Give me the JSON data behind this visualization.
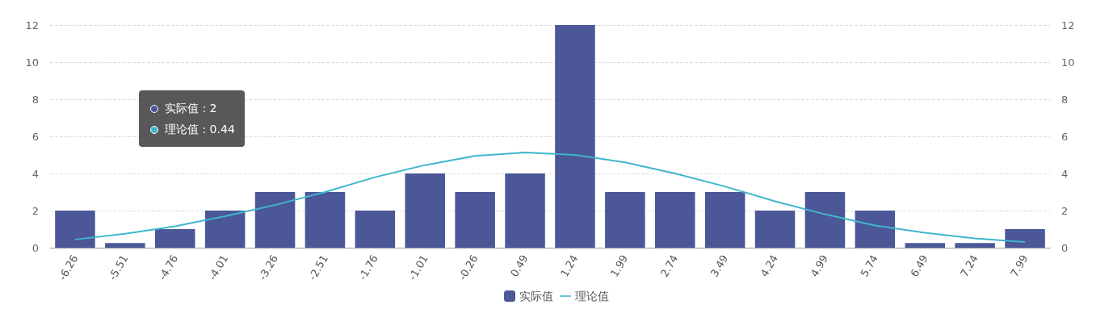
{
  "chart_data": {
    "type": "bar",
    "categories": [
      "-6.26",
      "-5.51",
      "-4.76",
      "-4.01",
      "-3.26",
      "-2.51",
      "-1.76",
      "-1.01",
      "-0.26",
      "0.49",
      "1.24",
      "1.99",
      "2.74",
      "3.49",
      "4.24",
      "4.99",
      "5.74",
      "6.49",
      "7.24",
      "7.99"
    ],
    "series": [
      {
        "name": "实际值",
        "color": "#4b5797",
        "values": [
          2,
          0.25,
          1,
          2,
          3,
          3,
          2,
          4,
          3,
          4,
          12,
          3,
          3,
          3,
          2,
          3,
          2,
          0.25,
          0.25,
          1
        ]
      },
      {
        "name": "理论值",
        "type": "line",
        "color": "#3fb6cc",
        "marker": "none",
        "values": [
          0.44,
          0.75,
          1.15,
          1.7,
          2.3,
          3.0,
          3.8,
          4.45,
          4.95,
          5.13,
          5.0,
          4.6,
          4.0,
          3.3,
          2.5,
          1.8,
          1.2,
          0.8,
          0.5,
          0.3
        ]
      }
    ],
    "ylim": [
      0,
      12
    ],
    "yticks": [
      0,
      2,
      4,
      6,
      8,
      10,
      12
    ],
    "y2lim": [
      0,
      12
    ],
    "y2ticks": [
      0,
      2,
      4,
      6,
      8,
      10,
      12
    ],
    "grid": "y",
    "legend": "bottom",
    "annotations": [
      "实际值 : 2",
      "理论值 : 0.44"
    ]
  }
}
